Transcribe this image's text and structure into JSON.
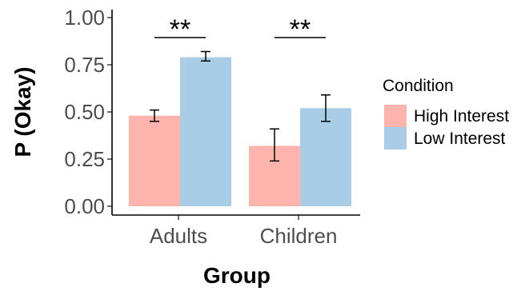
{
  "chart_data": {
    "type": "bar",
    "title": "",
    "xlabel": "Group",
    "ylabel": "P (Okay)",
    "categories": [
      "Adults",
      "Children"
    ],
    "ylim": [
      0,
      1
    ],
    "yticks": [
      "0.00",
      "0.25",
      "0.50",
      "0.75",
      "1.00"
    ],
    "series": [
      {
        "name": "High Interest",
        "color": "#ffb3ad",
        "values": [
          0.48,
          0.32
        ],
        "err_low": [
          0.45,
          0.24
        ],
        "err_high": [
          0.51,
          0.41
        ]
      },
      {
        "name": "Low Interest",
        "color": "#a9cde6",
        "values": [
          0.79,
          0.52
        ],
        "err_low": [
          0.77,
          0.45
        ],
        "err_high": [
          0.82,
          0.59
        ]
      }
    ],
    "annotations": [
      {
        "category": "Adults",
        "text": "**"
      },
      {
        "category": "Children",
        "text": "**"
      }
    ],
    "legend": {
      "title": "Condition",
      "position": "right"
    },
    "grid": false
  }
}
